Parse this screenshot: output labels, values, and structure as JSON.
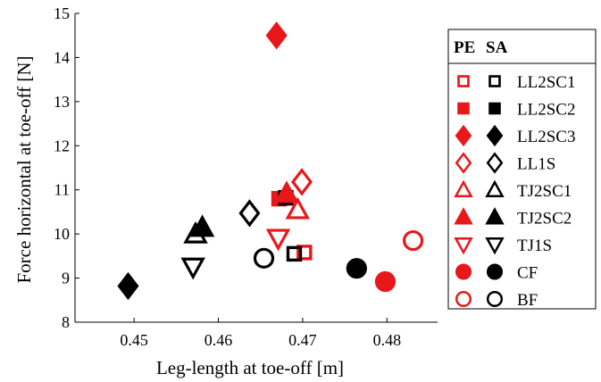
{
  "chart_data": {
    "type": "scatter",
    "xlabel": "Leg-length at toe-off [m]",
    "ylabel": "Force horizontal at toe-off [N]",
    "xlim": [
      0.443,
      0.486
    ],
    "ylim": [
      8,
      15
    ],
    "xticks": [
      0.45,
      0.46,
      0.47,
      0.48
    ],
    "xtick_labels": [
      "0.45",
      "0.46",
      "0.47",
      "0.48"
    ],
    "yticks": [
      8,
      9,
      10,
      11,
      12,
      13,
      14,
      15
    ],
    "ytick_labels": [
      "8",
      "9",
      "10",
      "11",
      "12",
      "13",
      "14",
      "15"
    ],
    "grid": false,
    "legend_position": "right",
    "legend_header": [
      "PE",
      "SA"
    ],
    "groups": [
      {
        "label": "LL2SC1",
        "marker": "square",
        "size": "small",
        "fill": "open"
      },
      {
        "label": "LL2SC2",
        "marker": "square",
        "size": "small",
        "fill": "filled"
      },
      {
        "label": "LL2SC3",
        "marker": "diamond",
        "size": "large",
        "fill": "filled"
      },
      {
        "label": "LL1S",
        "marker": "diamond",
        "size": "large",
        "fill": "open"
      },
      {
        "label": "TJ2SC1",
        "marker": "triangle-up",
        "size": "large",
        "fill": "open"
      },
      {
        "label": "TJ2SC2",
        "marker": "triangle-up",
        "size": "large",
        "fill": "filled"
      },
      {
        "label": "TJ1S",
        "marker": "triangle-down",
        "size": "large",
        "fill": "open"
      },
      {
        "label": "CF",
        "marker": "circle",
        "size": "large",
        "fill": "filled"
      },
      {
        "label": "BF",
        "marker": "circle",
        "size": "large",
        "fill": "open"
      }
    ],
    "conditions": [
      {
        "code": "PE",
        "color": "#e8171a"
      },
      {
        "code": "SA",
        "color": "#000000"
      }
    ],
    "series": [
      {
        "group": "LL2SC1",
        "condition": "PE",
        "x": 0.4702,
        "y": 9.58
      },
      {
        "group": "LL2SC1",
        "condition": "SA",
        "x": 0.469,
        "y": 9.55
      },
      {
        "group": "LL2SC2",
        "condition": "PE",
        "x": 0.4672,
        "y": 10.8
      },
      {
        "group": "LL2SC2",
        "condition": "SA",
        "x": 0.468,
        "y": 10.82
      },
      {
        "group": "LL2SC3",
        "condition": "PE",
        "x": 0.4669,
        "y": 14.5
      },
      {
        "group": "LL2SC3",
        "condition": "SA",
        "x": 0.4493,
        "y": 8.82
      },
      {
        "group": "LL1S",
        "condition": "PE",
        "x": 0.4699,
        "y": 11.18
      },
      {
        "group": "LL1S",
        "condition": "SA",
        "x": 0.4637,
        "y": 10.47
      },
      {
        "group": "TJ2SC1",
        "condition": "PE",
        "x": 0.4694,
        "y": 10.55
      },
      {
        "group": "TJ2SC1",
        "condition": "SA",
        "x": 0.4573,
        "y": 10.0
      },
      {
        "group": "TJ2SC2",
        "condition": "PE",
        "x": 0.4681,
        "y": 10.92
      },
      {
        "group": "TJ2SC2",
        "condition": "SA",
        "x": 0.4581,
        "y": 10.15
      },
      {
        "group": "TJ1S",
        "condition": "PE",
        "x": 0.4671,
        "y": 9.9
      },
      {
        "group": "TJ1S",
        "condition": "SA",
        "x": 0.457,
        "y": 9.25
      },
      {
        "group": "CF",
        "condition": "PE",
        "x": 0.4798,
        "y": 8.92
      },
      {
        "group": "CF",
        "condition": "SA",
        "x": 0.4764,
        "y": 9.22
      },
      {
        "group": "BF",
        "condition": "PE",
        "x": 0.4831,
        "y": 9.85
      },
      {
        "group": "BF",
        "condition": "SA",
        "x": 0.4654,
        "y": 9.45
      }
    ]
  }
}
